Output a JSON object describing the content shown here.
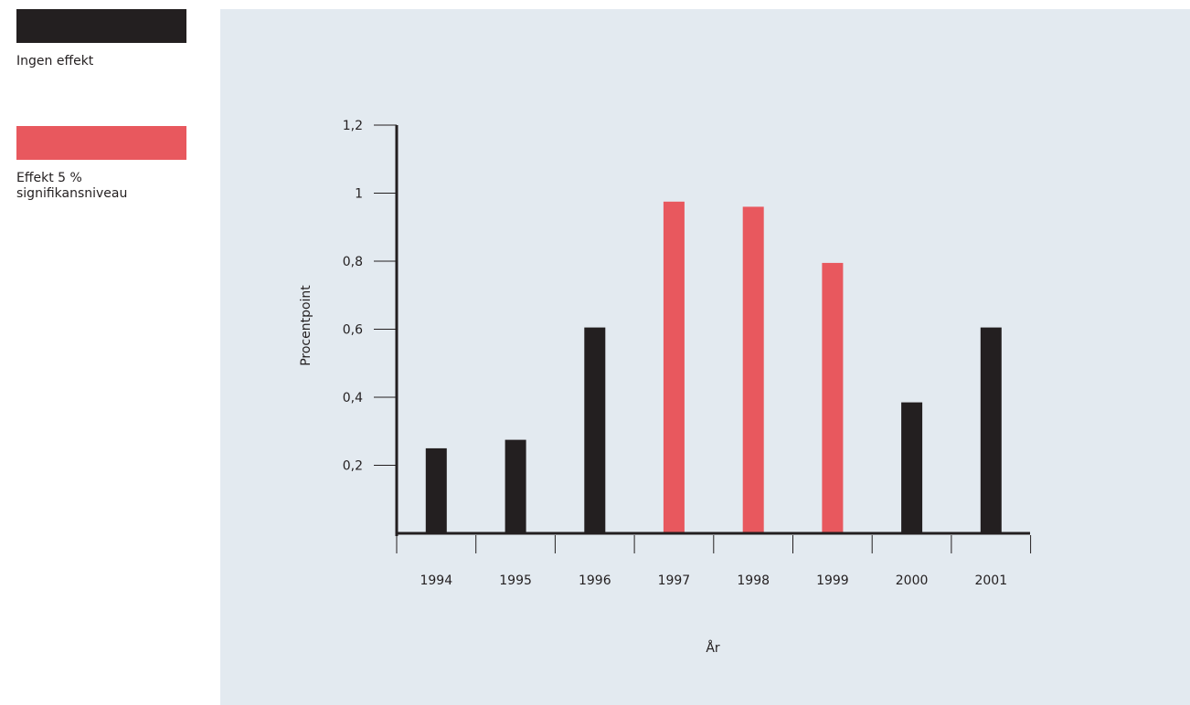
{
  "legend": {
    "items": [
      {
        "label": "Ingen effekt",
        "color": "#231f20"
      },
      {
        "label": "Effekt 5 %\nsignifikansniveau",
        "color": "#e8585e"
      }
    ]
  },
  "colors": {
    "panel_background": "#e3eaf0",
    "axis": "#231f20"
  },
  "chart_data": {
    "type": "bar",
    "categories": [
      "1994",
      "1995",
      "1996",
      "1997",
      "1998",
      "1999",
      "2000",
      "2001"
    ],
    "values": [
      0.25,
      0.275,
      0.605,
      0.975,
      0.96,
      0.795,
      0.385,
      0.605
    ],
    "significant": [
      false,
      false,
      false,
      true,
      true,
      true,
      false,
      false
    ],
    "xlabel": "År",
    "ylabel": "Procentpoint",
    "ylim": [
      0,
      1.2
    ],
    "yticks": [
      0.2,
      0.4,
      0.6,
      0.8,
      1,
      1.2
    ],
    "ytick_labels": [
      "0,2",
      "0,4",
      "0,6",
      "0,8",
      "1",
      "1,2"
    ],
    "grid": false,
    "legend_position": "top-left"
  }
}
